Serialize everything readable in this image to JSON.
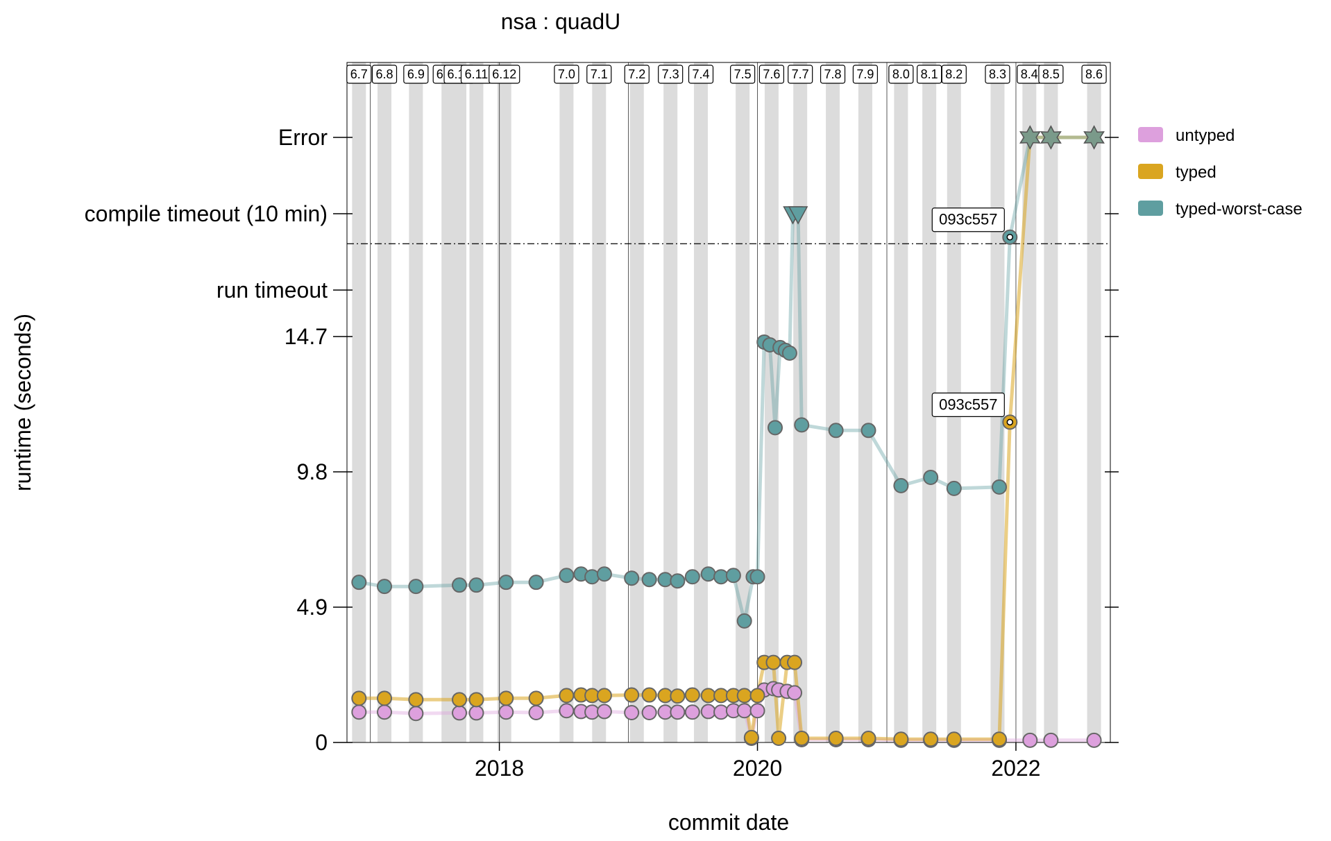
{
  "chart_data": {
    "type": "line",
    "title": "nsa : quadU",
    "xlabel": "commit date",
    "ylabel": "runtime (seconds)",
    "x_axis": {
      "kind": "date",
      "xlim": [
        "2016-10-27",
        "2022-09-25"
      ],
      "ticks": [
        {
          "label": "2018",
          "value": "2018-01-01"
        },
        {
          "label": "2020",
          "value": "2020-01-01"
        },
        {
          "label": "2022",
          "value": "2022-01-01"
        }
      ]
    },
    "y_axis": {
      "ylim": [
        0,
        19.6
      ],
      "ticks": [
        {
          "label": "0",
          "value": 0
        },
        {
          "label": "4.9",
          "value": 4.9
        },
        {
          "label": "9.8",
          "value": 9.8
        },
        {
          "label": "14.7",
          "value": 14.7
        }
      ],
      "threshold_line": 18.06,
      "special_levels": [
        {
          "label": "run timeout",
          "slot": "run-timeout"
        },
        {
          "label": "compile timeout (10 min)",
          "slot": "compile-timeout"
        },
        {
          "label": "Error",
          "slot": "error"
        }
      ]
    },
    "grid": false,
    "legend_position": "right",
    "releases": [
      {
        "label": "6.7",
        "date": "2016-11-30"
      },
      {
        "label": "6.8",
        "date": "2017-02-10"
      },
      {
        "label": "6.9",
        "date": "2017-05-10"
      },
      {
        "label": "6.10",
        "date": "2017-08-10"
      },
      {
        "label": "6.10",
        "date": "2017-09-10"
      },
      {
        "label": "6.11",
        "date": "2017-10-28"
      },
      {
        "label": "6.12",
        "date": "2018-01-15"
      },
      {
        "label": "7.0",
        "date": "2018-07-10"
      },
      {
        "label": "7.1",
        "date": "2018-10-10"
      },
      {
        "label": "7.2",
        "date": "2019-01-25"
      },
      {
        "label": "7.3",
        "date": "2019-04-30"
      },
      {
        "label": "7.4",
        "date": "2019-07-25"
      },
      {
        "label": "7.5",
        "date": "2019-11-20"
      },
      {
        "label": "7.6",
        "date": "2020-02-10"
      },
      {
        "label": "7.7",
        "date": "2020-05-01"
      },
      {
        "label": "7.8",
        "date": "2020-08-01"
      },
      {
        "label": "7.9",
        "date": "2020-11-01"
      },
      {
        "label": "8.0",
        "date": "2021-02-10"
      },
      {
        "label": "8.1",
        "date": "2021-05-01"
      },
      {
        "label": "8.2",
        "date": "2021-07-10"
      },
      {
        "label": "8.3",
        "date": "2021-11-10"
      },
      {
        "label": "8.4",
        "date": "2022-02-08"
      },
      {
        "label": "8.5",
        "date": "2022-04-10"
      },
      {
        "label": "8.6",
        "date": "2022-08-10"
      }
    ],
    "annotations": [
      {
        "text": "093c557",
        "date": "2021-12-15",
        "value": 18.3
      },
      {
        "text": "093c557",
        "date": "2021-12-15",
        "value": 11.6
      }
    ],
    "series": [
      {
        "name": "untyped",
        "color": "#dda0dd",
        "points": [
          [
            "2016-11-30",
            1.1
          ],
          [
            "2017-02-10",
            1.1
          ],
          [
            "2017-05-10",
            1.05
          ],
          [
            "2017-09-10",
            1.07
          ],
          [
            "2017-10-28",
            1.07
          ],
          [
            "2018-01-20",
            1.1
          ],
          [
            "2018-04-15",
            1.08
          ],
          [
            "2018-07-10",
            1.15
          ],
          [
            "2018-08-20",
            1.12
          ],
          [
            "2018-09-20",
            1.1
          ],
          [
            "2018-10-25",
            1.12
          ],
          [
            "2019-01-10",
            1.08
          ],
          [
            "2019-03-01",
            1.08
          ],
          [
            "2019-04-15",
            1.1
          ],
          [
            "2019-05-20",
            1.1
          ],
          [
            "2019-07-01",
            1.1
          ],
          [
            "2019-08-15",
            1.12
          ],
          [
            "2019-09-20",
            1.1
          ],
          [
            "2019-10-25",
            1.15
          ],
          [
            "2019-11-25",
            1.15
          ],
          [
            "2020-01-01",
            1.15
          ],
          [
            "2019-12-15",
            0.15
          ],
          [
            "2020-01-20",
            1.9
          ],
          [
            "2020-02-15",
            1.95
          ],
          [
            "2020-03-01",
            1.9
          ],
          [
            "2020-03-25",
            1.85
          ],
          [
            "2020-04-15",
            1.8
          ],
          [
            "2020-05-05",
            0.1
          ],
          [
            "2020-08-10",
            0.1
          ],
          [
            "2020-11-10",
            0.1
          ],
          [
            "2021-02-10",
            0.08
          ],
          [
            "2021-05-05",
            0.08
          ],
          [
            "2021-07-10",
            0.08
          ],
          [
            "2021-11-15",
            0.08
          ],
          [
            "2022-02-10",
            0.08
          ],
          [
            "2022-04-10",
            0.08
          ],
          [
            "2022-08-10",
            0.08
          ]
        ]
      },
      {
        "name": "typed",
        "color": "#daa520",
        "points": [
          [
            "2016-11-30",
            1.6
          ],
          [
            "2017-02-10",
            1.6
          ],
          [
            "2017-05-10",
            1.55
          ],
          [
            "2017-09-10",
            1.55
          ],
          [
            "2017-10-28",
            1.55
          ],
          [
            "2018-01-20",
            1.6
          ],
          [
            "2018-04-15",
            1.6
          ],
          [
            "2018-07-10",
            1.7
          ],
          [
            "2018-08-20",
            1.72
          ],
          [
            "2018-09-20",
            1.7
          ],
          [
            "2018-10-25",
            1.7
          ],
          [
            "2019-01-10",
            1.72
          ],
          [
            "2019-03-01",
            1.72
          ],
          [
            "2019-04-15",
            1.7
          ],
          [
            "2019-05-20",
            1.68
          ],
          [
            "2019-07-01",
            1.72
          ],
          [
            "2019-08-15",
            1.7
          ],
          [
            "2019-09-20",
            1.7
          ],
          [
            "2019-10-25",
            1.7
          ],
          [
            "2019-11-25",
            1.7
          ],
          [
            "2020-01-01",
            1.7
          ],
          [
            "2019-12-15",
            0.18
          ],
          [
            "2020-01-20",
            2.9
          ],
          [
            "2020-02-15",
            2.9
          ],
          [
            "2020-03-01",
            0.15
          ],
          [
            "2020-03-25",
            2.9
          ],
          [
            "2020-04-15",
            2.9
          ],
          [
            "2020-05-05",
            0.15
          ],
          [
            "2020-08-10",
            0.15
          ],
          [
            "2020-11-10",
            0.15
          ],
          [
            "2021-02-10",
            0.12
          ],
          [
            "2021-05-05",
            0.12
          ],
          [
            "2021-07-10",
            0.12
          ],
          [
            "2021-11-15",
            0.12
          ],
          [
            "2021-12-15",
            11.6
          ],
          [
            "2022-02-10",
            "Error"
          ],
          [
            "2022-04-10",
            "Error"
          ],
          [
            "2022-08-10",
            "Error"
          ]
        ]
      },
      {
        "name": "typed-worst-case",
        "color": "#5f9ea0",
        "points": [
          [
            "2016-11-30",
            5.8
          ],
          [
            "2017-02-10",
            5.65
          ],
          [
            "2017-05-10",
            5.65
          ],
          [
            "2017-09-10",
            5.7
          ],
          [
            "2017-10-28",
            5.7
          ],
          [
            "2018-01-20",
            5.8
          ],
          [
            "2018-04-15",
            5.8
          ],
          [
            "2018-07-10",
            6.05
          ],
          [
            "2018-08-20",
            6.1
          ],
          [
            "2018-09-20",
            6.0
          ],
          [
            "2018-10-25",
            6.1
          ],
          [
            "2019-01-10",
            5.95
          ],
          [
            "2019-03-01",
            5.9
          ],
          [
            "2019-04-15",
            5.9
          ],
          [
            "2019-05-20",
            5.85
          ],
          [
            "2019-07-01",
            6.0
          ],
          [
            "2019-08-15",
            6.1
          ],
          [
            "2019-09-20",
            6.0
          ],
          [
            "2019-10-25",
            6.05
          ],
          [
            "2019-11-25",
            4.4
          ],
          [
            "2019-12-20",
            6.0
          ],
          [
            "2020-01-01",
            6.0
          ],
          [
            "2020-01-20",
            14.5
          ],
          [
            "2020-02-05",
            14.4
          ],
          [
            "2020-02-20",
            11.4
          ],
          [
            "2020-03-05",
            14.3
          ],
          [
            "2020-03-20",
            14.2
          ],
          [
            "2020-04-01",
            14.1
          ],
          [
            "2020-04-10",
            "compile timeout (10 min)"
          ],
          [
            "2020-04-25",
            "compile timeout (10 min)"
          ],
          [
            "2020-05-05",
            11.5
          ],
          [
            "2020-08-10",
            11.3
          ],
          [
            "2020-11-10",
            11.3
          ],
          [
            "2021-02-10",
            9.3
          ],
          [
            "2021-05-05",
            9.6
          ],
          [
            "2021-07-10",
            9.2
          ],
          [
            "2021-11-15",
            9.25
          ],
          [
            "2021-12-15",
            18.3
          ],
          [
            "2022-02-10",
            "Error"
          ],
          [
            "2022-04-10",
            "Error"
          ],
          [
            "2022-08-10",
            "Error"
          ]
        ]
      }
    ]
  }
}
